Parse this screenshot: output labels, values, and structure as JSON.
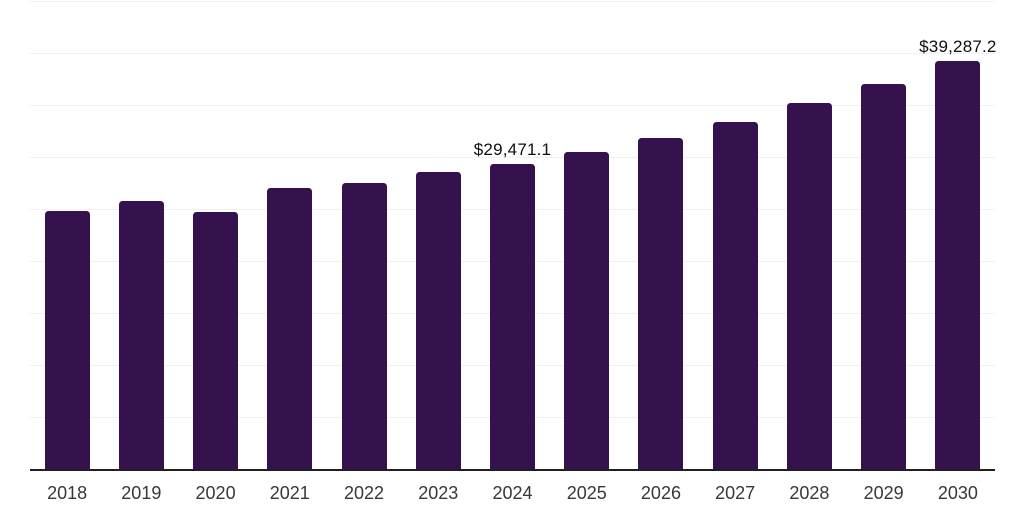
{
  "chart_data": {
    "type": "bar",
    "title": "",
    "xlabel": "",
    "ylabel": "",
    "categories": [
      "2018",
      "2019",
      "2020",
      "2021",
      "2022",
      "2023",
      "2024",
      "2025",
      "2026",
      "2027",
      "2028",
      "2029",
      "2030"
    ],
    "values": [
      24950,
      25900,
      24800,
      27150,
      27600,
      28650,
      29471.1,
      30600,
      31950,
      33500,
      35250,
      37100,
      39287.2
    ],
    "data_labels": [
      {
        "category": "2024",
        "text": "$29,471.1"
      },
      {
        "category": "2030",
        "text": "$39,287.2"
      }
    ],
    "ylim": [
      0,
      45000
    ],
    "gridline_step": 5000,
    "grid": true,
    "legend": false,
    "y_axis_tick_labels_visible": false,
    "colors": {
      "bar": "#35114d",
      "grid": "#f1f1f3",
      "axis_line": "#1f1f1f",
      "tick_label": "#383838",
      "data_label": "#101010",
      "background": "#ffffff"
    }
  }
}
